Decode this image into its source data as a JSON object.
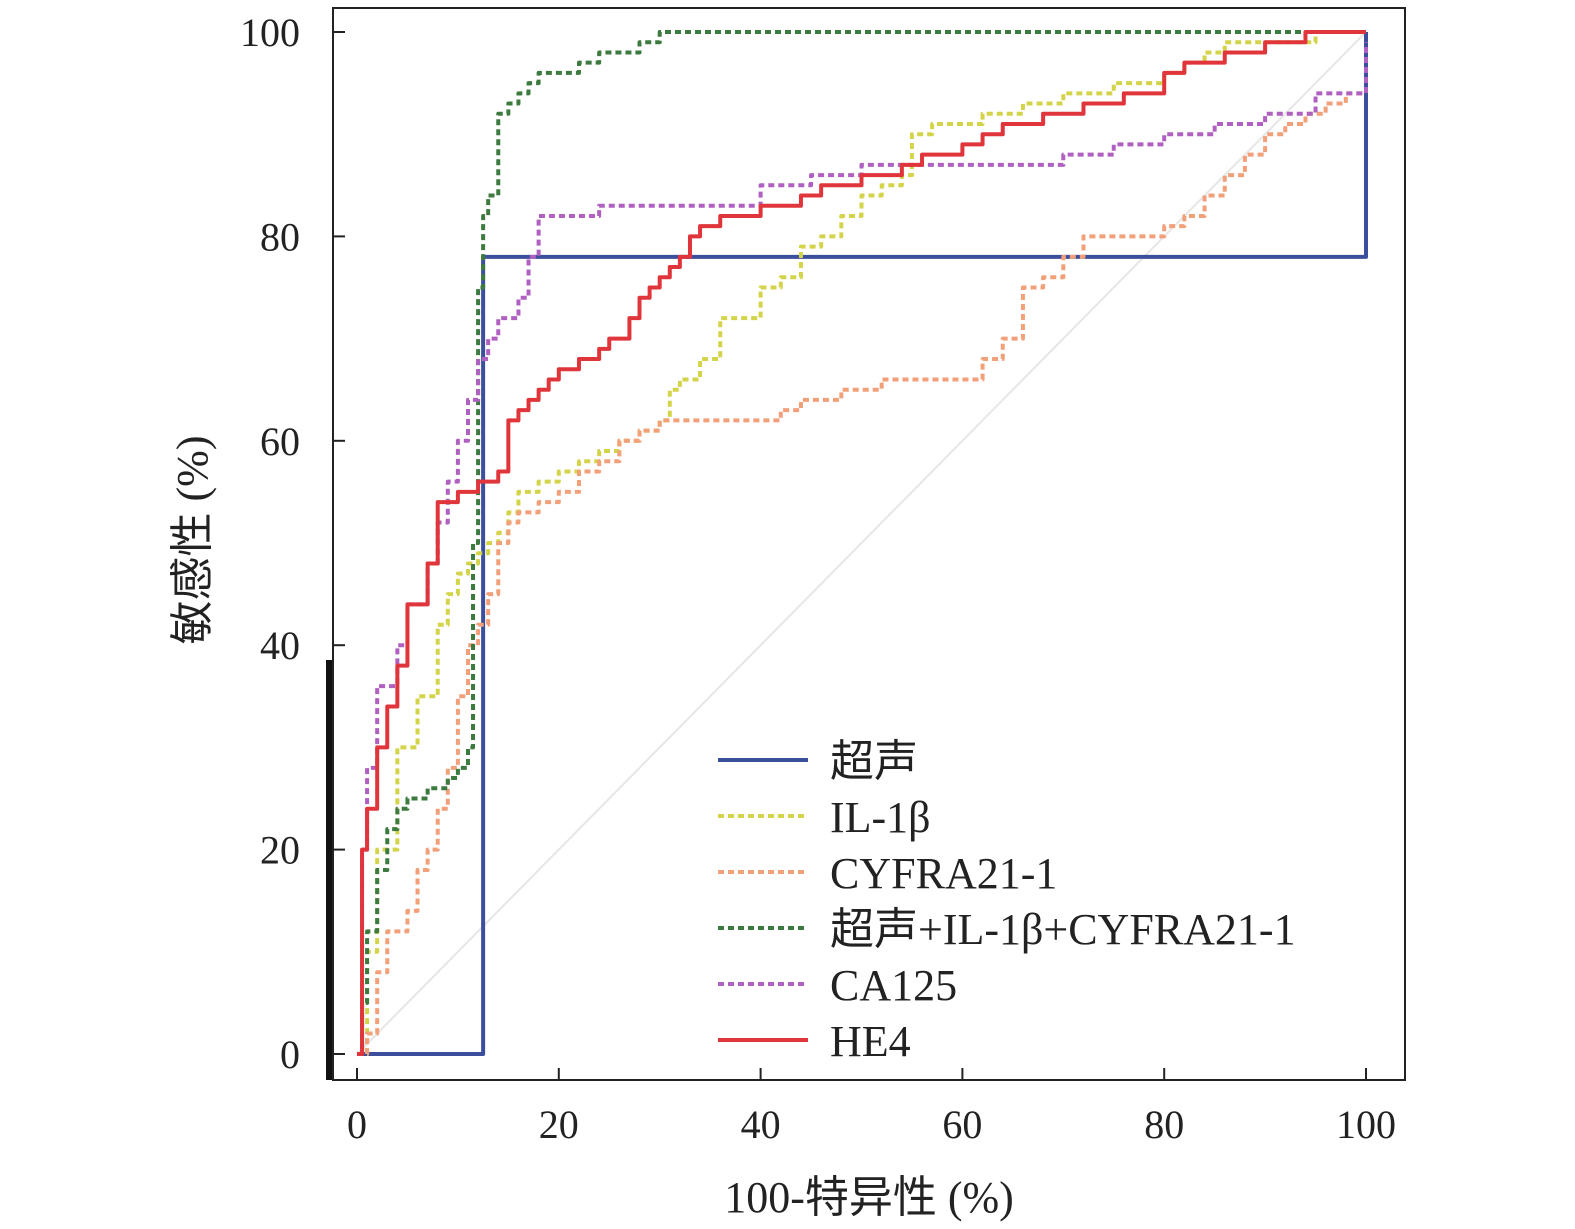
{
  "chart_data": {
    "type": "line",
    "title": "",
    "xlabel": "100-特异性 (%)",
    "ylabel": "敏感性 (%)",
    "xlim": [
      0,
      100
    ],
    "ylim": [
      0,
      100
    ],
    "x_ticks": [
      "0",
      "20",
      "40",
      "60",
      "80",
      "100"
    ],
    "y_ticks": [
      "0",
      "20",
      "40",
      "60",
      "80",
      "100"
    ],
    "legend_position": "bottom-right",
    "reference_line": {
      "x": [
        0,
        100
      ],
      "y": [
        0,
        100
      ],
      "color": "#e6e6e6"
    },
    "series": [
      {
        "name": "超声",
        "color": "#3c4f9c",
        "dash": "",
        "x": [
          0,
          12.5,
          100
        ],
        "y": [
          0,
          78,
          100
        ]
      },
      {
        "name": "IL-1β",
        "color": "#d4d44a",
        "dash": "6,4",
        "x": [
          0,
          1,
          2,
          4,
          6,
          8,
          9,
          10,
          11,
          12,
          13,
          14,
          15,
          16,
          18,
          20,
          22,
          24,
          26,
          28,
          30,
          31,
          32,
          34,
          36,
          38,
          40,
          42,
          44,
          46,
          48,
          50,
          52,
          54,
          55,
          57,
          60,
          62,
          64,
          66,
          68,
          70,
          72,
          75,
          78,
          80,
          82,
          84,
          86,
          90,
          95,
          100
        ],
        "y": [
          0,
          10,
          20,
          30,
          35,
          42,
          45,
          47,
          48,
          49,
          50,
          51,
          53,
          55,
          56,
          57,
          58,
          59,
          60,
          61,
          62,
          65,
          66,
          68,
          72,
          72,
          75,
          76,
          79,
          80,
          82,
          84,
          85,
          86,
          90,
          91,
          91,
          92,
          92,
          93,
          93,
          94,
          94,
          95,
          95,
          96,
          97,
          98,
          99,
          99,
          100,
          100
        ]
      },
      {
        "name": "CYFRA21-1",
        "color": "#f2a079",
        "dash": "6,4",
        "x": [
          0,
          1,
          2,
          3,
          5,
          6,
          7,
          8,
          9,
          10,
          11,
          12,
          13,
          14,
          15,
          16,
          18,
          20,
          22,
          24,
          26,
          28,
          30,
          32,
          34,
          36,
          38,
          40,
          42,
          44,
          46,
          48,
          50,
          52,
          54,
          56,
          58,
          60,
          62,
          64,
          66,
          68,
          70,
          72,
          74,
          76,
          78,
          80,
          82,
          84,
          86,
          88,
          90,
          92,
          94,
          96,
          98,
          100
        ],
        "y": [
          0,
          2,
          8,
          12,
          14,
          18,
          20,
          24,
          28,
          35,
          40,
          42,
          45,
          50,
          52,
          53,
          54,
          55,
          57,
          58,
          60,
          61,
          62,
          62,
          62,
          62,
          62,
          62,
          63,
          64,
          64,
          65,
          65,
          66,
          66,
          66,
          66,
          66,
          68,
          70,
          75,
          76,
          78,
          80,
          80,
          80,
          80,
          81,
          82,
          84,
          86,
          88,
          90,
          91,
          92,
          93,
          94,
          97
        ]
      },
      {
        "name": "超声+IL-1β+CYFRA21-1",
        "color": "#3d7a3f",
        "dash": "6,4",
        "x": [
          0,
          0.5,
          1,
          2,
          3,
          4,
          5,
          6,
          7,
          8,
          9,
          10,
          11,
          11.5,
          12,
          12.5,
          13,
          14,
          15,
          16,
          17,
          18,
          20,
          22,
          24,
          26,
          28,
          30,
          32,
          40,
          60,
          80,
          100
        ],
        "y": [
          0,
          5,
          12,
          18,
          22,
          24,
          25,
          25,
          26,
          26,
          27,
          28,
          30,
          50,
          75,
          82,
          84,
          92,
          93,
          94,
          95,
          96,
          96,
          97,
          98,
          98,
          99,
          100,
          100,
          100,
          100,
          100,
          100
        ]
      },
      {
        "name": "CA125",
        "color": "#b060c0",
        "dash": "6,4",
        "x": [
          0,
          0.5,
          1,
          2,
          3,
          4,
          5,
          6,
          7,
          8,
          9,
          10,
          11,
          12,
          13,
          14,
          15,
          16,
          17,
          18,
          20,
          22,
          24,
          26,
          28,
          30,
          35,
          40,
          45,
          50,
          55,
          60,
          65,
          70,
          75,
          80,
          85,
          90,
          95,
          100
        ],
        "y": [
          0,
          20,
          28,
          36,
          36,
          40,
          44,
          44,
          48,
          52,
          56,
          60,
          64,
          68,
          70,
          72,
          72,
          74,
          78,
          82,
          82,
          82,
          83,
          83,
          83,
          83,
          83,
          85,
          86,
          87,
          87,
          87,
          87,
          88,
          89,
          90,
          91,
          92,
          94,
          99
        ]
      },
      {
        "name": "HE4",
        "color": "#e0353a",
        "dash": "",
        "x": [
          0,
          0.5,
          1,
          2,
          3,
          4,
          5,
          6,
          7,
          8,
          9,
          10,
          11,
          12,
          13,
          14,
          15,
          16,
          17,
          18,
          19,
          20,
          21,
          22,
          23,
          24,
          25,
          26,
          27,
          28,
          29,
          30,
          31,
          32,
          33,
          34,
          35,
          36,
          38,
          40,
          42,
          44,
          46,
          48,
          50,
          52,
          54,
          56,
          58,
          60,
          62,
          64,
          66,
          68,
          70,
          72,
          74,
          76,
          78,
          80,
          82,
          84,
          86,
          88,
          90,
          92,
          94,
          96,
          100
        ],
        "y": [
          0,
          20,
          24,
          30,
          34,
          38,
          44,
          44,
          48,
          54,
          54,
          55,
          55,
          56,
          56,
          57,
          62,
          63,
          64,
          65,
          66,
          67,
          67,
          68,
          68,
          69,
          70,
          70,
          72,
          74,
          75,
          76,
          77,
          78,
          80,
          81,
          81,
          82,
          82,
          83,
          83,
          84,
          85,
          85,
          86,
          86,
          87,
          88,
          88,
          89,
          90,
          91,
          91,
          92,
          92,
          93,
          93,
          94,
          94,
          96,
          97,
          97,
          98,
          98,
          99,
          99,
          100,
          100,
          100
        ]
      }
    ]
  }
}
